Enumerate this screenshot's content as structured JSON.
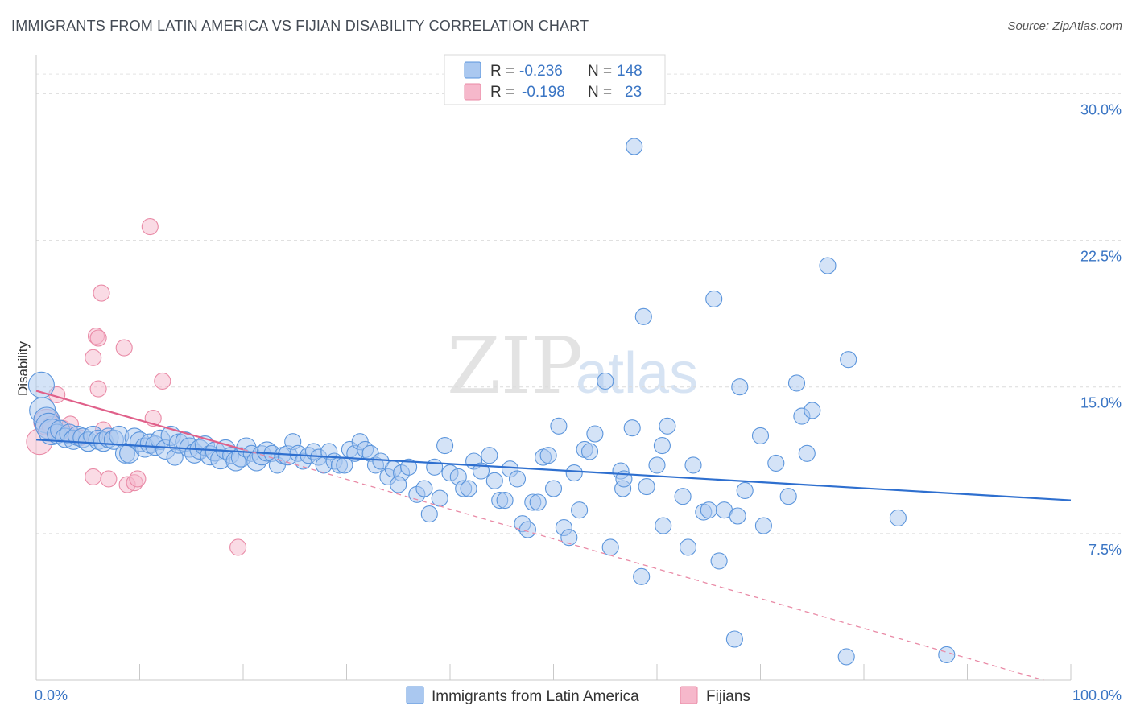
{
  "header": {
    "title": "IMMIGRANTS FROM LATIN AMERICA VS FIJIAN DISABILITY CORRELATION CHART",
    "source": "Source: ZipAtlas.com"
  },
  "watermark": {
    "zip": "ZIP",
    "atlas": "atlas"
  },
  "legend": {
    "rows": [
      {
        "r_label": "R =",
        "r_value": "-0.236",
        "n_label": "N =",
        "n_value": "148",
        "color": "#aac8f0"
      },
      {
        "r_label": "R =",
        "r_value": "-0.198",
        "n_label": "N =",
        "n_value": "23",
        "color": "#f6b8cb"
      }
    ]
  },
  "bottom_legend": [
    {
      "label": "Immigrants from Latin America",
      "color": "#aac8f0"
    },
    {
      "label": "Fijians",
      "color": "#f6b8cb"
    }
  ],
  "chart_data": {
    "type": "scatter",
    "title": "IMMIGRANTS FROM LATIN AMERICA VS FIJIAN DISABILITY CORRELATION CHART",
    "xlabel": "",
    "ylabel": "Disability",
    "xlim": [
      0,
      100
    ],
    "ylim": [
      0,
      31.5
    ],
    "x_tick_labels": [
      "0.0%",
      "100.0%"
    ],
    "y_ticks": [
      7.5,
      15.0,
      22.5,
      30.0
    ],
    "y_tick_labels": [
      "7.5%",
      "15.0%",
      "22.5%",
      "30.0%"
    ],
    "grid": "horizontal dashed",
    "legend_position": "top-center",
    "series": [
      {
        "name": "Immigrants from Latin America",
        "color": "#5b95dc",
        "fill": "#aac8f0",
        "trend": {
          "x": [
            0,
            100
          ],
          "y": [
            12.3,
            9.2
          ],
          "color": "#2e6fcf"
        },
        "points": [
          [
            0.5,
            15.1,
            2
          ],
          [
            0.6,
            13.8,
            2
          ],
          [
            1.0,
            13.3,
            2
          ],
          [
            1.2,
            13.0,
            2
          ],
          [
            1.5,
            12.7,
            2
          ],
          [
            2.0,
            12.6,
            1
          ],
          [
            2.3,
            12.8,
            1
          ],
          [
            2.8,
            12.4,
            1
          ],
          [
            3.2,
            12.6,
            1
          ],
          [
            3.6,
            12.3,
            1
          ],
          [
            4.0,
            12.5,
            1
          ],
          [
            4.5,
            12.4,
            1
          ],
          [
            5.0,
            12.2,
            1
          ],
          [
            5.5,
            12.5,
            1
          ],
          [
            6.0,
            12.3,
            1
          ],
          [
            6.5,
            12.2,
            1
          ],
          [
            7.0,
            12.4,
            1
          ],
          [
            7.5,
            12.3,
            1
          ],
          [
            8.0,
            12.5,
            1
          ],
          [
            8.6,
            11.6,
            1
          ],
          [
            9.0,
            11.6,
            1
          ],
          [
            9.5,
            12.4,
            1
          ],
          [
            10.0,
            12.2,
            1
          ],
          [
            10.5,
            11.9,
            1
          ],
          [
            11.0,
            12.1,
            1
          ],
          [
            11.5,
            12.0,
            1
          ],
          [
            12.0,
            12.3,
            1
          ],
          [
            12.5,
            11.8,
            1
          ],
          [
            13.0,
            12.5,
            1
          ],
          [
            13.4,
            11.4,
            0
          ],
          [
            13.8,
            12.1,
            1
          ],
          [
            14.4,
            12.2,
            1
          ],
          [
            14.8,
            11.9,
            1
          ],
          [
            15.3,
            11.6,
            1
          ],
          [
            15.8,
            11.8,
            1
          ],
          [
            16.3,
            12.0,
            1
          ],
          [
            16.8,
            11.5,
            1
          ],
          [
            17.3,
            11.7,
            1
          ],
          [
            17.8,
            11.3,
            1
          ],
          [
            18.3,
            11.8,
            1
          ],
          [
            18.8,
            11.5,
            0
          ],
          [
            19.3,
            11.2,
            1
          ],
          [
            19.8,
            11.4,
            1
          ],
          [
            20.3,
            11.9,
            1
          ],
          [
            20.8,
            11.6,
            0
          ],
          [
            21.3,
            11.2,
            1
          ],
          [
            21.8,
            11.5,
            1
          ],
          [
            22.3,
            11.7,
            1
          ],
          [
            22.8,
            11.6,
            0
          ],
          [
            23.3,
            11.0,
            0
          ],
          [
            23.8,
            11.5,
            0
          ],
          [
            24.3,
            11.5,
            1
          ],
          [
            24.8,
            12.2,
            0
          ],
          [
            25.3,
            11.6,
            0
          ],
          [
            25.8,
            11.2,
            0
          ],
          [
            26.3,
            11.5,
            0
          ],
          [
            26.8,
            11.7,
            0
          ],
          [
            27.3,
            11.4,
            0
          ],
          [
            27.8,
            11.0,
            0
          ],
          [
            28.3,
            11.7,
            0
          ],
          [
            28.8,
            11.2,
            0
          ],
          [
            29.3,
            11.0,
            0
          ],
          [
            29.8,
            11.0,
            0
          ],
          [
            30.3,
            11.8,
            0
          ],
          [
            30.8,
            11.6,
            0
          ],
          [
            31.3,
            12.2,
            0
          ],
          [
            31.8,
            11.8,
            0
          ],
          [
            32.3,
            11.6,
            0
          ],
          [
            32.8,
            11.0,
            0
          ],
          [
            33.3,
            11.2,
            0
          ],
          [
            34.0,
            10.4,
            0
          ],
          [
            34.5,
            10.8,
            0
          ],
          [
            35.3,
            10.6,
            0
          ],
          [
            36.0,
            10.9,
            0
          ],
          [
            35.0,
            10.0,
            0
          ],
          [
            36.8,
            9.5,
            0
          ],
          [
            37.5,
            9.8,
            0
          ],
          [
            38.0,
            8.5,
            0
          ],
          [
            38.5,
            10.9,
            0
          ],
          [
            39.0,
            9.3,
            0
          ],
          [
            39.5,
            12.0,
            0
          ],
          [
            40.0,
            10.6,
            0
          ],
          [
            40.8,
            10.4,
            0
          ],
          [
            41.3,
            9.8,
            0
          ],
          [
            41.8,
            9.8,
            0
          ],
          [
            42.3,
            11.2,
            0
          ],
          [
            43.0,
            10.7,
            0
          ],
          [
            43.8,
            11.5,
            0
          ],
          [
            44.3,
            10.2,
            0
          ],
          [
            44.8,
            9.2,
            0
          ],
          [
            45.3,
            9.2,
            0
          ],
          [
            45.8,
            10.8,
            0
          ],
          [
            46.5,
            10.3,
            0
          ],
          [
            47.0,
            8.0,
            0
          ],
          [
            47.5,
            7.7,
            0
          ],
          [
            48.0,
            9.1,
            0
          ],
          [
            48.5,
            9.1,
            0
          ],
          [
            49.0,
            11.4,
            0
          ],
          [
            49.5,
            11.5,
            0
          ],
          [
            50.0,
            9.8,
            0
          ],
          [
            50.5,
            13.0,
            0
          ],
          [
            51.0,
            7.8,
            0
          ],
          [
            51.5,
            7.3,
            0
          ],
          [
            52.0,
            10.6,
            0
          ],
          [
            52.5,
            8.7,
            0
          ],
          [
            53.0,
            11.8,
            0
          ],
          [
            53.5,
            11.7,
            0
          ],
          [
            54.0,
            12.6,
            0
          ],
          [
            55.0,
            15.3,
            0
          ],
          [
            55.5,
            6.8,
            0
          ],
          [
            56.5,
            10.7,
            0
          ],
          [
            56.7,
            9.8,
            0
          ],
          [
            56.8,
            10.3,
            0
          ],
          [
            57.6,
            12.9,
            0
          ],
          [
            57.8,
            27.3,
            0
          ],
          [
            58.5,
            5.3,
            0
          ],
          [
            58.7,
            18.6,
            0
          ],
          [
            59.0,
            9.9,
            0
          ],
          [
            60.0,
            11.0,
            0
          ],
          [
            60.5,
            12.0,
            0
          ],
          [
            60.6,
            7.9,
            0
          ],
          [
            61.0,
            13.0,
            0
          ],
          [
            62.5,
            9.4,
            0
          ],
          [
            63.0,
            6.8,
            0
          ],
          [
            63.5,
            11.0,
            0
          ],
          [
            64.5,
            8.6,
            0
          ],
          [
            65.0,
            8.7,
            0
          ],
          [
            65.5,
            19.5,
            0
          ],
          [
            66.0,
            6.1,
            0
          ],
          [
            66.5,
            8.7,
            0
          ],
          [
            67.5,
            2.1,
            0
          ],
          [
            67.8,
            8.4,
            0
          ],
          [
            68.0,
            15.0,
            0
          ],
          [
            68.5,
            9.7,
            0
          ],
          [
            70.0,
            12.5,
            0
          ],
          [
            70.3,
            7.9,
            0
          ],
          [
            71.5,
            11.1,
            0
          ],
          [
            72.7,
            9.4,
            0
          ],
          [
            73.5,
            15.2,
            0
          ],
          [
            74.0,
            13.5,
            0
          ],
          [
            74.5,
            11.6,
            0
          ],
          [
            75.0,
            13.8,
            0
          ],
          [
            76.5,
            21.2,
            0
          ],
          [
            78.5,
            16.4,
            0
          ],
          [
            78.3,
            1.2,
            0
          ],
          [
            83.3,
            8.3,
            0
          ],
          [
            88.0,
            1.3,
            0
          ]
        ]
      },
      {
        "name": "Fijians",
        "color": "#e98aa6",
        "fill": "#f6b8cb",
        "trend": {
          "x": [
            0,
            20
          ],
          "y": [
            14.8,
            11.8
          ],
          "color": "#e0608a"
        },
        "trend_extension": {
          "x": [
            20,
            100
          ],
          "y": [
            11.8,
            -0.4
          ]
        },
        "points": [
          [
            0.3,
            12.2,
            2
          ],
          [
            1.0,
            13.2,
            2
          ],
          [
            1.5,
            13.0,
            1
          ],
          [
            2.0,
            14.6,
            0
          ],
          [
            2.5,
            12.8,
            1
          ],
          [
            3.0,
            12.6,
            0
          ],
          [
            3.3,
            13.1,
            0
          ],
          [
            4.2,
            12.4,
            0
          ],
          [
            5.5,
            10.4,
            0
          ],
          [
            5.8,
            17.6,
            0
          ],
          [
            5.5,
            16.5,
            0
          ],
          [
            6.0,
            17.5,
            0
          ],
          [
            6.0,
            14.9,
            0
          ],
          [
            6.3,
            19.8,
            0
          ],
          [
            6.5,
            12.8,
            0
          ],
          [
            7.0,
            10.3,
            0
          ],
          [
            8.5,
            17.0,
            0
          ],
          [
            8.8,
            10.0,
            0
          ],
          [
            9.5,
            10.1,
            0
          ],
          [
            9.8,
            10.3,
            0
          ],
          [
            11.0,
            23.2,
            0
          ],
          [
            11.3,
            13.4,
            0
          ],
          [
            12.2,
            15.3,
            0
          ],
          [
            19.5,
            6.8,
            0
          ]
        ]
      }
    ]
  }
}
